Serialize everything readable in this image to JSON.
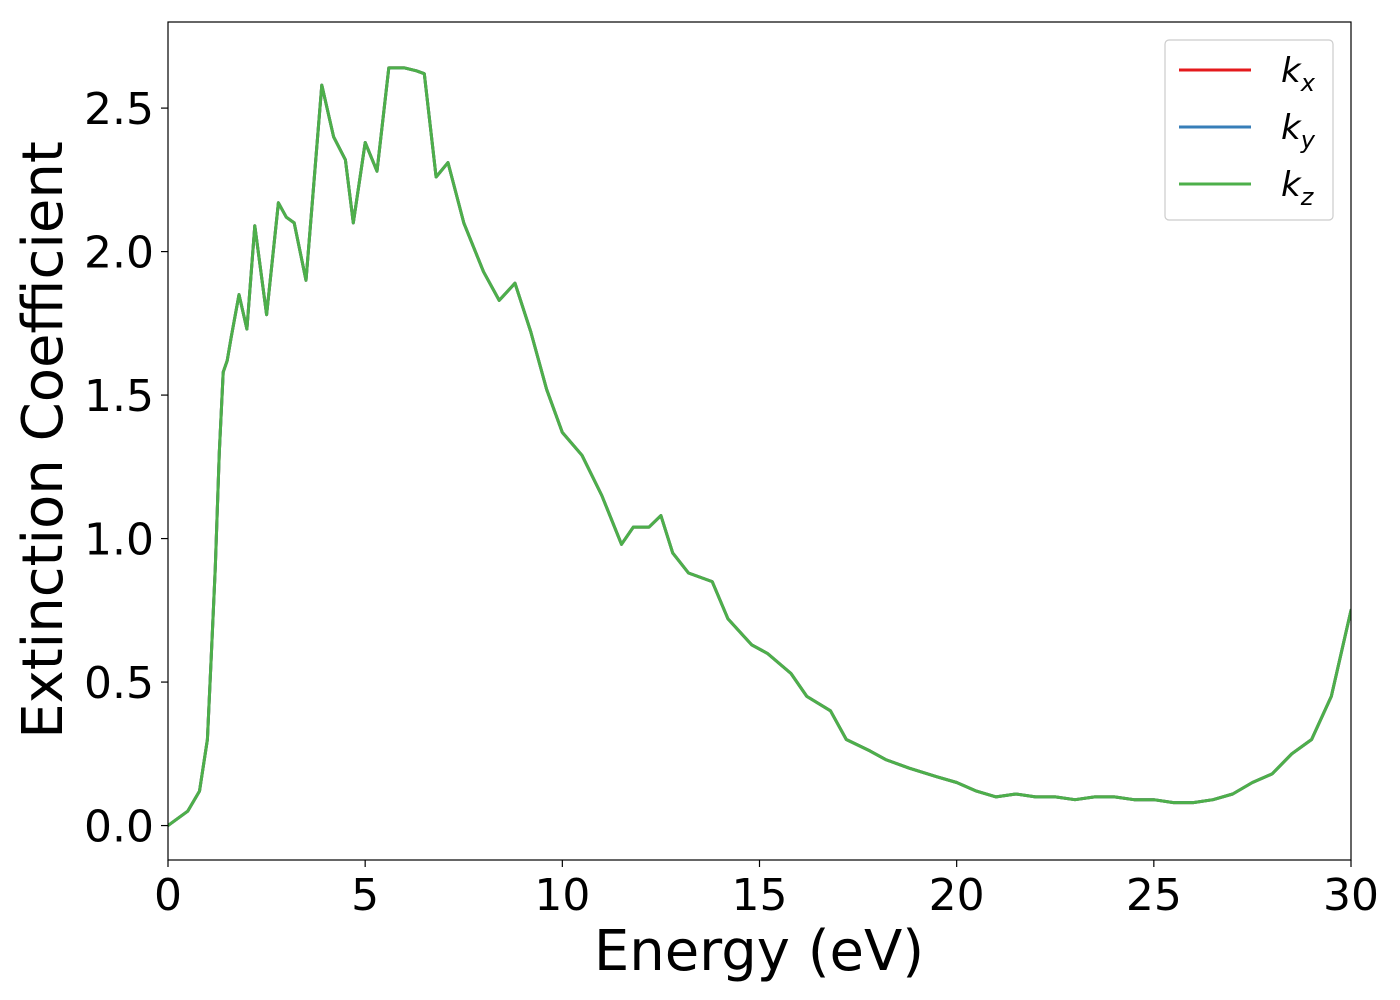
{
  "chart_data": {
    "type": "line",
    "title": "",
    "xlabel": "Energy (eV)",
    "ylabel": "Extinction Coefficient",
    "xlim": [
      0,
      30
    ],
    "ylim": [
      -0.12,
      2.8
    ],
    "xticks": [
      0,
      5,
      10,
      15,
      20,
      25,
      30
    ],
    "xtick_labels": [
      "0",
      "5",
      "10",
      "15",
      "20",
      "25",
      "30"
    ],
    "yticks": [
      0.0,
      0.5,
      1.0,
      1.5,
      2.0,
      2.5
    ],
    "ytick_labels": [
      "0.0",
      "0.5",
      "1.0",
      "1.5",
      "2.0",
      "2.5"
    ],
    "grid": false,
    "legend_position": "top-right",
    "x": [
      0,
      0.5,
      0.8,
      1.0,
      1.1,
      1.2,
      1.3,
      1.4,
      1.5,
      1.6,
      1.8,
      2.0,
      2.2,
      2.5,
      2.8,
      3.0,
      3.2,
      3.5,
      3.9,
      4.2,
      4.5,
      4.7,
      5.0,
      5.3,
      5.6,
      6.0,
      6.3,
      6.5,
      6.8,
      7.1,
      7.5,
      8.0,
      8.4,
      8.8,
      9.2,
      9.6,
      10.0,
      10.5,
      11.0,
      11.5,
      11.8,
      12.2,
      12.5,
      12.8,
      13.2,
      13.8,
      14.2,
      14.8,
      15.2,
      15.8,
      16.2,
      16.8,
      17.2,
      17.8,
      18.2,
      18.8,
      19.5,
      20.0,
      20.5,
      21.0,
      21.5,
      22.0,
      22.5,
      23.0,
      23.5,
      24.0,
      24.5,
      25.0,
      25.5,
      26.0,
      26.5,
      27.0,
      27.5,
      28.0,
      28.5,
      29.0,
      29.5,
      30.0
    ],
    "series": [
      {
        "name": "k_x",
        "color": "#e41a1c",
        "values": [
          0.0,
          0.05,
          0.12,
          0.3,
          0.6,
          0.9,
          1.3,
          1.58,
          1.62,
          1.7,
          1.85,
          1.73,
          2.09,
          1.78,
          2.17,
          2.12,
          2.1,
          1.9,
          2.58,
          2.4,
          2.32,
          2.1,
          2.38,
          2.28,
          2.64,
          2.64,
          2.63,
          2.62,
          2.26,
          2.31,
          2.1,
          1.93,
          1.83,
          1.89,
          1.72,
          1.52,
          1.37,
          1.29,
          1.15,
          0.98,
          1.04,
          1.04,
          1.08,
          0.95,
          0.88,
          0.85,
          0.72,
          0.63,
          0.6,
          0.53,
          0.45,
          0.4,
          0.3,
          0.26,
          0.23,
          0.2,
          0.17,
          0.15,
          0.12,
          0.1,
          0.11,
          0.1,
          0.1,
          0.09,
          0.1,
          0.1,
          0.09,
          0.09,
          0.08,
          0.08,
          0.09,
          0.11,
          0.15,
          0.18,
          0.25,
          0.3,
          0.45,
          0.75
        ]
      },
      {
        "name": "k_y",
        "color": "#377eb8",
        "values": [
          0.0,
          0.05,
          0.12,
          0.3,
          0.6,
          0.9,
          1.3,
          1.58,
          1.62,
          1.7,
          1.85,
          1.73,
          2.09,
          1.78,
          2.17,
          2.12,
          2.1,
          1.9,
          2.58,
          2.4,
          2.32,
          2.1,
          2.38,
          2.28,
          2.64,
          2.64,
          2.63,
          2.62,
          2.26,
          2.31,
          2.1,
          1.93,
          1.83,
          1.89,
          1.72,
          1.52,
          1.37,
          1.29,
          1.15,
          0.98,
          1.04,
          1.04,
          1.08,
          0.95,
          0.88,
          0.85,
          0.72,
          0.63,
          0.6,
          0.53,
          0.45,
          0.4,
          0.3,
          0.26,
          0.23,
          0.2,
          0.17,
          0.15,
          0.12,
          0.1,
          0.11,
          0.1,
          0.1,
          0.09,
          0.1,
          0.1,
          0.09,
          0.09,
          0.08,
          0.08,
          0.09,
          0.11,
          0.15,
          0.18,
          0.25,
          0.3,
          0.45,
          0.75
        ]
      },
      {
        "name": "k_z",
        "color": "#4daf4a",
        "values": [
          0.0,
          0.05,
          0.12,
          0.3,
          0.6,
          0.9,
          1.3,
          1.58,
          1.62,
          1.7,
          1.85,
          1.73,
          2.09,
          1.78,
          2.17,
          2.12,
          2.1,
          1.9,
          2.58,
          2.4,
          2.32,
          2.1,
          2.38,
          2.28,
          2.64,
          2.64,
          2.63,
          2.62,
          2.26,
          2.31,
          2.1,
          1.93,
          1.83,
          1.89,
          1.72,
          1.52,
          1.37,
          1.29,
          1.15,
          0.98,
          1.04,
          1.04,
          1.08,
          0.95,
          0.88,
          0.85,
          0.72,
          0.63,
          0.6,
          0.53,
          0.45,
          0.4,
          0.3,
          0.26,
          0.23,
          0.2,
          0.17,
          0.15,
          0.12,
          0.1,
          0.11,
          0.1,
          0.1,
          0.09,
          0.1,
          0.1,
          0.09,
          0.09,
          0.08,
          0.08,
          0.09,
          0.11,
          0.15,
          0.18,
          0.25,
          0.3,
          0.45,
          0.75
        ]
      }
    ],
    "legend": [
      {
        "base": "k",
        "sub": "x",
        "color": "#e41a1c"
      },
      {
        "base": "k",
        "sub": "y",
        "color": "#377eb8"
      },
      {
        "base": "k",
        "sub": "z",
        "color": "#4daf4a"
      }
    ]
  }
}
